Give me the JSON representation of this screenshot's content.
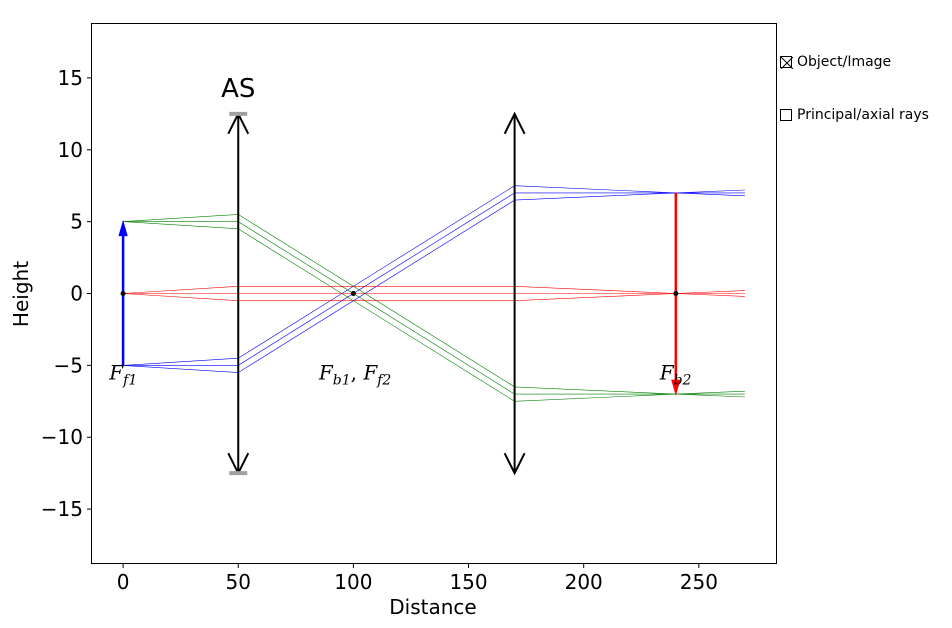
{
  "chart_data": {
    "type": "line",
    "xlabel": "Distance",
    "ylabel": "Height",
    "xlim": [
      -13.5,
      283.5
    ],
    "ylim": [
      -18.75,
      18.75
    ],
    "xticks": [
      0,
      50,
      100,
      150,
      200,
      250
    ],
    "yticks": [
      -15,
      -10,
      -5,
      0,
      5,
      10,
      15
    ],
    "xtick_labels": [
      "0",
      "50",
      "100",
      "150",
      "200",
      "250"
    ],
    "ytick_labels": [
      "−15",
      "−10",
      "−5",
      "0",
      "5",
      "10",
      "15"
    ],
    "grid": false,
    "lenses": [
      {
        "x": 50,
        "y_min": -12.5,
        "y_max": 12.5,
        "label": "AS",
        "stops": true
      },
      {
        "x": 170,
        "y_min": -12.5,
        "y_max": 12.5,
        "label": "",
        "stops": false
      }
    ],
    "object": {
      "x": 0,
      "y0": -5,
      "y1": 5,
      "color": "#0000ff"
    },
    "image": {
      "x": 240,
      "y0": 7,
      "y1": -7,
      "color": "#ff0000"
    },
    "focal_labels": [
      {
        "x": -6,
        "y": -6,
        "base": "F",
        "sub": "f1"
      },
      {
        "x": 85,
        "y": -6,
        "base": "F",
        "sub": "b1",
        "sep": ", ",
        "base2": "F",
        "sub2": "f2"
      },
      {
        "x": 233,
        "y": -6,
        "base": "F",
        "sub": "b2"
      }
    ],
    "focal_points": [
      {
        "x": 0,
        "y": 0
      },
      {
        "x": 100,
        "y": 0
      },
      {
        "x": 240,
        "y": 0
      }
    ],
    "series": [
      {
        "color": "#008000",
        "x": [
          0,
          50,
          170,
          240,
          270
        ],
        "y": [
          5,
          5.5,
          -6.5,
          -7,
          -6.8
        ]
      },
      {
        "color": "#008000",
        "x": [
          0,
          50,
          170,
          240,
          270
        ],
        "y": [
          5,
          5.0,
          -7.0,
          -7,
          -7.0
        ]
      },
      {
        "color": "#008000",
        "x": [
          0,
          50,
          170,
          240,
          270
        ],
        "y": [
          5,
          4.5,
          -7.5,
          -7,
          -7.2
        ]
      },
      {
        "color": "#0000ff",
        "x": [
          0,
          50,
          170,
          240,
          270
        ],
        "y": [
          -5,
          -4.5,
          7.5,
          7,
          7.2
        ]
      },
      {
        "color": "#0000ff",
        "x": [
          0,
          50,
          170,
          240,
          270
        ],
        "y": [
          -5,
          -5.0,
          7.0,
          7,
          7.0
        ]
      },
      {
        "color": "#0000ff",
        "x": [
          0,
          50,
          170,
          240,
          270
        ],
        "y": [
          -5,
          -5.5,
          6.5,
          7,
          6.8
        ]
      },
      {
        "color": "#ff0000",
        "x": [
          0,
          50,
          170,
          240,
          270
        ],
        "y": [
          0,
          0.5,
          0.5,
          0,
          -0.2
        ]
      },
      {
        "color": "#ff0000",
        "x": [
          0,
          50,
          170,
          240,
          270
        ],
        "y": [
          0,
          0.0,
          0.0,
          0,
          0.0
        ]
      },
      {
        "color": "#ff0000",
        "x": [
          0,
          50,
          170,
          240,
          270
        ],
        "y": [
          0,
          -0.5,
          -0.5,
          0,
          0.2
        ]
      }
    ]
  },
  "legend": {
    "object_image": {
      "label": "Object/Image",
      "checked": true
    },
    "principal_axial": {
      "label": "Principal/axial rays",
      "checked": false
    }
  }
}
